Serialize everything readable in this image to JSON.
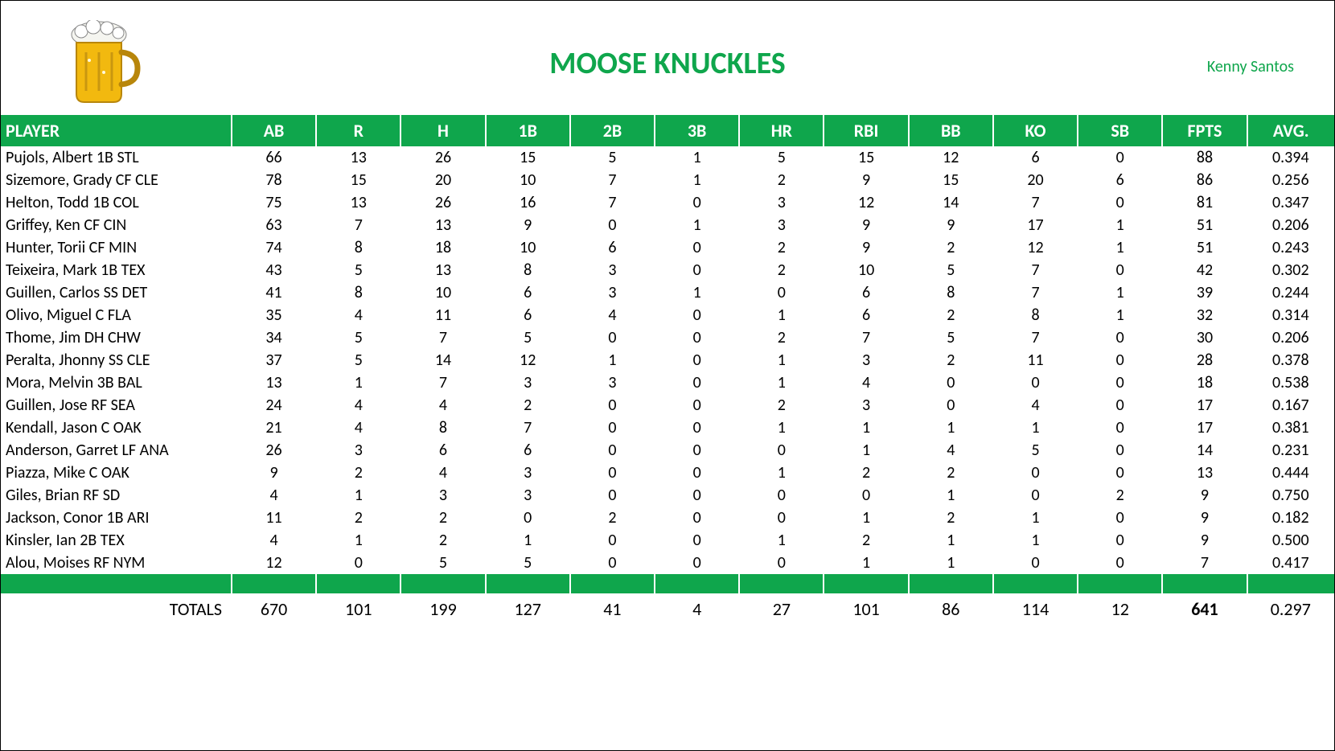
{
  "title": "MOOSE KNUCKLES",
  "author": "Kenny Santos",
  "colors": {
    "accent": "#0fa64c",
    "header_text": "#ffffff",
    "body_text": "#000000",
    "background": "#ffffff"
  },
  "typography": {
    "title_fontsize": 38,
    "author_fontsize": 20,
    "header_fontsize": 22,
    "cell_fontsize": 20
  },
  "table": {
    "columns": [
      "PLAYER",
      "AB",
      "R",
      "H",
      "1B",
      "2B",
      "3B",
      "HR",
      "RBI",
      "BB",
      "KO",
      "SB",
      "FPTS",
      "AVG."
    ],
    "column_alignments": [
      "left",
      "center",
      "center",
      "center",
      "center",
      "center",
      "center",
      "center",
      "center",
      "center",
      "center",
      "center",
      "center",
      "center"
    ],
    "rows": [
      [
        "Pujols, Albert 1B STL",
        "66",
        "13",
        "26",
        "15",
        "5",
        "1",
        "5",
        "15",
        "12",
        "6",
        "0",
        "88",
        "0.394"
      ],
      [
        "Sizemore, Grady CF CLE",
        "78",
        "15",
        "20",
        "10",
        "7",
        "1",
        "2",
        "9",
        "15",
        "20",
        "6",
        "86",
        "0.256"
      ],
      [
        "Helton, Todd 1B COL",
        "75",
        "13",
        "26",
        "16",
        "7",
        "0",
        "3",
        "12",
        "14",
        "7",
        "0",
        "81",
        "0.347"
      ],
      [
        "Griffey, Ken CF CIN",
        "63",
        "7",
        "13",
        "9",
        "0",
        "1",
        "3",
        "9",
        "9",
        "17",
        "1",
        "51",
        "0.206"
      ],
      [
        "Hunter, Torii CF MIN",
        "74",
        "8",
        "18",
        "10",
        "6",
        "0",
        "2",
        "9",
        "2",
        "12",
        "1",
        "51",
        "0.243"
      ],
      [
        "Teixeira, Mark 1B TEX",
        "43",
        "5",
        "13",
        "8",
        "3",
        "0",
        "2",
        "10",
        "5",
        "7",
        "0",
        "42",
        "0.302"
      ],
      [
        "Guillen, Carlos SS DET",
        "41",
        "8",
        "10",
        "6",
        "3",
        "1",
        "0",
        "6",
        "8",
        "7",
        "1",
        "39",
        "0.244"
      ],
      [
        "Olivo, Miguel C FLA",
        "35",
        "4",
        "11",
        "6",
        "4",
        "0",
        "1",
        "6",
        "2",
        "8",
        "1",
        "32",
        "0.314"
      ],
      [
        "Thome, Jim DH CHW",
        "34",
        "5",
        "7",
        "5",
        "0",
        "0",
        "2",
        "7",
        "5",
        "7",
        "0",
        "30",
        "0.206"
      ],
      [
        "Peralta, Jhonny SS CLE",
        "37",
        "5",
        "14",
        "12",
        "1",
        "0",
        "1",
        "3",
        "2",
        "11",
        "0",
        "28",
        "0.378"
      ],
      [
        "Mora, Melvin 3B BAL",
        "13",
        "1",
        "7",
        "3",
        "3",
        "0",
        "1",
        "4",
        "0",
        "0",
        "0",
        "18",
        "0.538"
      ],
      [
        "Guillen, Jose RF SEA",
        "24",
        "4",
        "4",
        "2",
        "0",
        "0",
        "2",
        "3",
        "0",
        "4",
        "0",
        "17",
        "0.167"
      ],
      [
        "Kendall, Jason C OAK",
        "21",
        "4",
        "8",
        "7",
        "0",
        "0",
        "1",
        "1",
        "1",
        "1",
        "0",
        "17",
        "0.381"
      ],
      [
        "Anderson, Garret LF ANA",
        "26",
        "3",
        "6",
        "6",
        "0",
        "0",
        "0",
        "1",
        "4",
        "5",
        "0",
        "14",
        "0.231"
      ],
      [
        "Piazza, Mike C OAK",
        "9",
        "2",
        "4",
        "3",
        "0",
        "0",
        "1",
        "2",
        "2",
        "0",
        "0",
        "13",
        "0.444"
      ],
      [
        "Giles, Brian RF SD",
        "4",
        "1",
        "3",
        "3",
        "0",
        "0",
        "0",
        "0",
        "1",
        "0",
        "2",
        "9",
        "0.750"
      ],
      [
        "Jackson, Conor 1B ARI",
        "11",
        "2",
        "2",
        "0",
        "2",
        "0",
        "0",
        "1",
        "2",
        "1",
        "0",
        "9",
        "0.182"
      ],
      [
        "Kinsler, Ian 2B TEX",
        "4",
        "1",
        "2",
        "1",
        "0",
        "0",
        "1",
        "2",
        "1",
        "1",
        "0",
        "9",
        "0.500"
      ],
      [
        "Alou, Moises RF NYM",
        "12",
        "0",
        "5",
        "5",
        "0",
        "0",
        "0",
        "1",
        "1",
        "0",
        "0",
        "7",
        "0.417"
      ]
    ],
    "totals_label": "TOTALS",
    "totals": [
      "670",
      "101",
      "199",
      "127",
      "41",
      "4",
      "27",
      "101",
      "86",
      "114",
      "12",
      "641",
      "0.297"
    ],
    "totals_bold_column": 12
  }
}
